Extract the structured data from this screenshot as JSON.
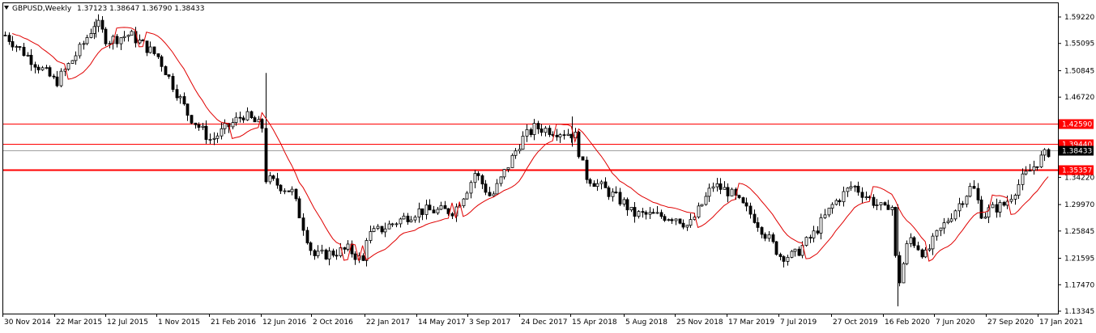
{
  "header": {
    "symbol": "GBPUSD,Weekly",
    "ohlc": "1.37123 1.38647 1.36790 1.38433",
    "dropdown_icon": "triangle-down-icon"
  },
  "colors": {
    "bull_bear_candle": "#000000",
    "moving_average": "#e00000",
    "level_line": "#ff0000",
    "price_line": "#a0a0a0",
    "current_price_tag": "#000000",
    "level_tag": "#ff0000",
    "frame": "#000000"
  },
  "chart_data": {
    "type": "candlestick",
    "timeframe": "Weekly",
    "symbol": "GBPUSD",
    "ylim": [
      1.13,
      1.6
    ],
    "yticks": [
      "1.59220",
      "1.55095",
      "1.50845",
      "1.46720",
      "1.42590",
      "1.38433",
      "1.34220",
      "1.29970",
      "1.25845",
      "1.21595",
      "1.17470",
      "1.13345"
    ],
    "yticks_values": [
      1.5922,
      1.55095,
      1.50845,
      1.4672,
      1.4259,
      1.38433,
      1.3422,
      1.2997,
      1.25845,
      1.21595,
      1.1747,
      1.13345
    ],
    "xticks": [
      "30 Nov 2014",
      "22 Mar 2015",
      "12 Jul 2015",
      "1 Nov 2015",
      "21 Feb 2016",
      "12 Jun 2016",
      "2 Oct 2016",
      "22 Jan 2017",
      "14 May 2017",
      "3 Sep 2017",
      "24 Dec 2017",
      "15 Apr 2018",
      "5 Aug 2018",
      "25 Nov 2018",
      "17 Mar 2019",
      "7 Jul 2019",
      "27 Oct 2019",
      "16 Feb 2020",
      "7 Jun 2020",
      "27 Sep 2020",
      "17 Jan 2021"
    ],
    "key_points": [
      {
        "date": "30 Nov 2014",
        "close": 1.565
      },
      {
        "date": "22 Mar 2015",
        "close": 1.49
      },
      {
        "date": "12 Jul 2015",
        "close": 1.555
      },
      {
        "date": "1 Nov 2015",
        "close": 1.53
      },
      {
        "date": "21 Feb 2016",
        "close": 1.4
      },
      {
        "date": "12 Jun 2016",
        "close": 1.42
      },
      {
        "date": "2 Oct 2016",
        "close": 1.22
      },
      {
        "date": "22 Jan 2017",
        "close": 1.25
      },
      {
        "date": "14 May 2017",
        "close": 1.29
      },
      {
        "date": "3 Sep 2017",
        "close": 1.33
      },
      {
        "date": "24 Dec 2017",
        "close": 1.4
      },
      {
        "date": "15 Apr 2018",
        "close": 1.41
      },
      {
        "date": "5 Aug 2018",
        "close": 1.3
      },
      {
        "date": "25 Nov 2018",
        "close": 1.28
      },
      {
        "date": "17 Mar 2019",
        "close": 1.32
      },
      {
        "date": "7 Jul 2019",
        "close": 1.22
      },
      {
        "date": "27 Oct 2019",
        "close": 1.3
      },
      {
        "date": "16 Feb 2020",
        "close": 1.29
      },
      {
        "date": "7 Jun 2020",
        "close": 1.25
      },
      {
        "date": "27 Sep 2020",
        "close": 1.29
      },
      {
        "date": "17 Jan 2021",
        "close": 1.37
      }
    ],
    "extremes": {
      "low": 1.141,
      "high": 1.589
    },
    "current_price": 1.38433,
    "horizontal_levels": [
      {
        "label": "1.42590",
        "value": 1.4259
      },
      {
        "label": "1.39440",
        "value": 1.3944
      },
      {
        "label": "1.35357",
        "value": 1.35357
      }
    ],
    "indicator": {
      "type": "moving-average",
      "color": "#e00000"
    },
    "grid": false
  }
}
